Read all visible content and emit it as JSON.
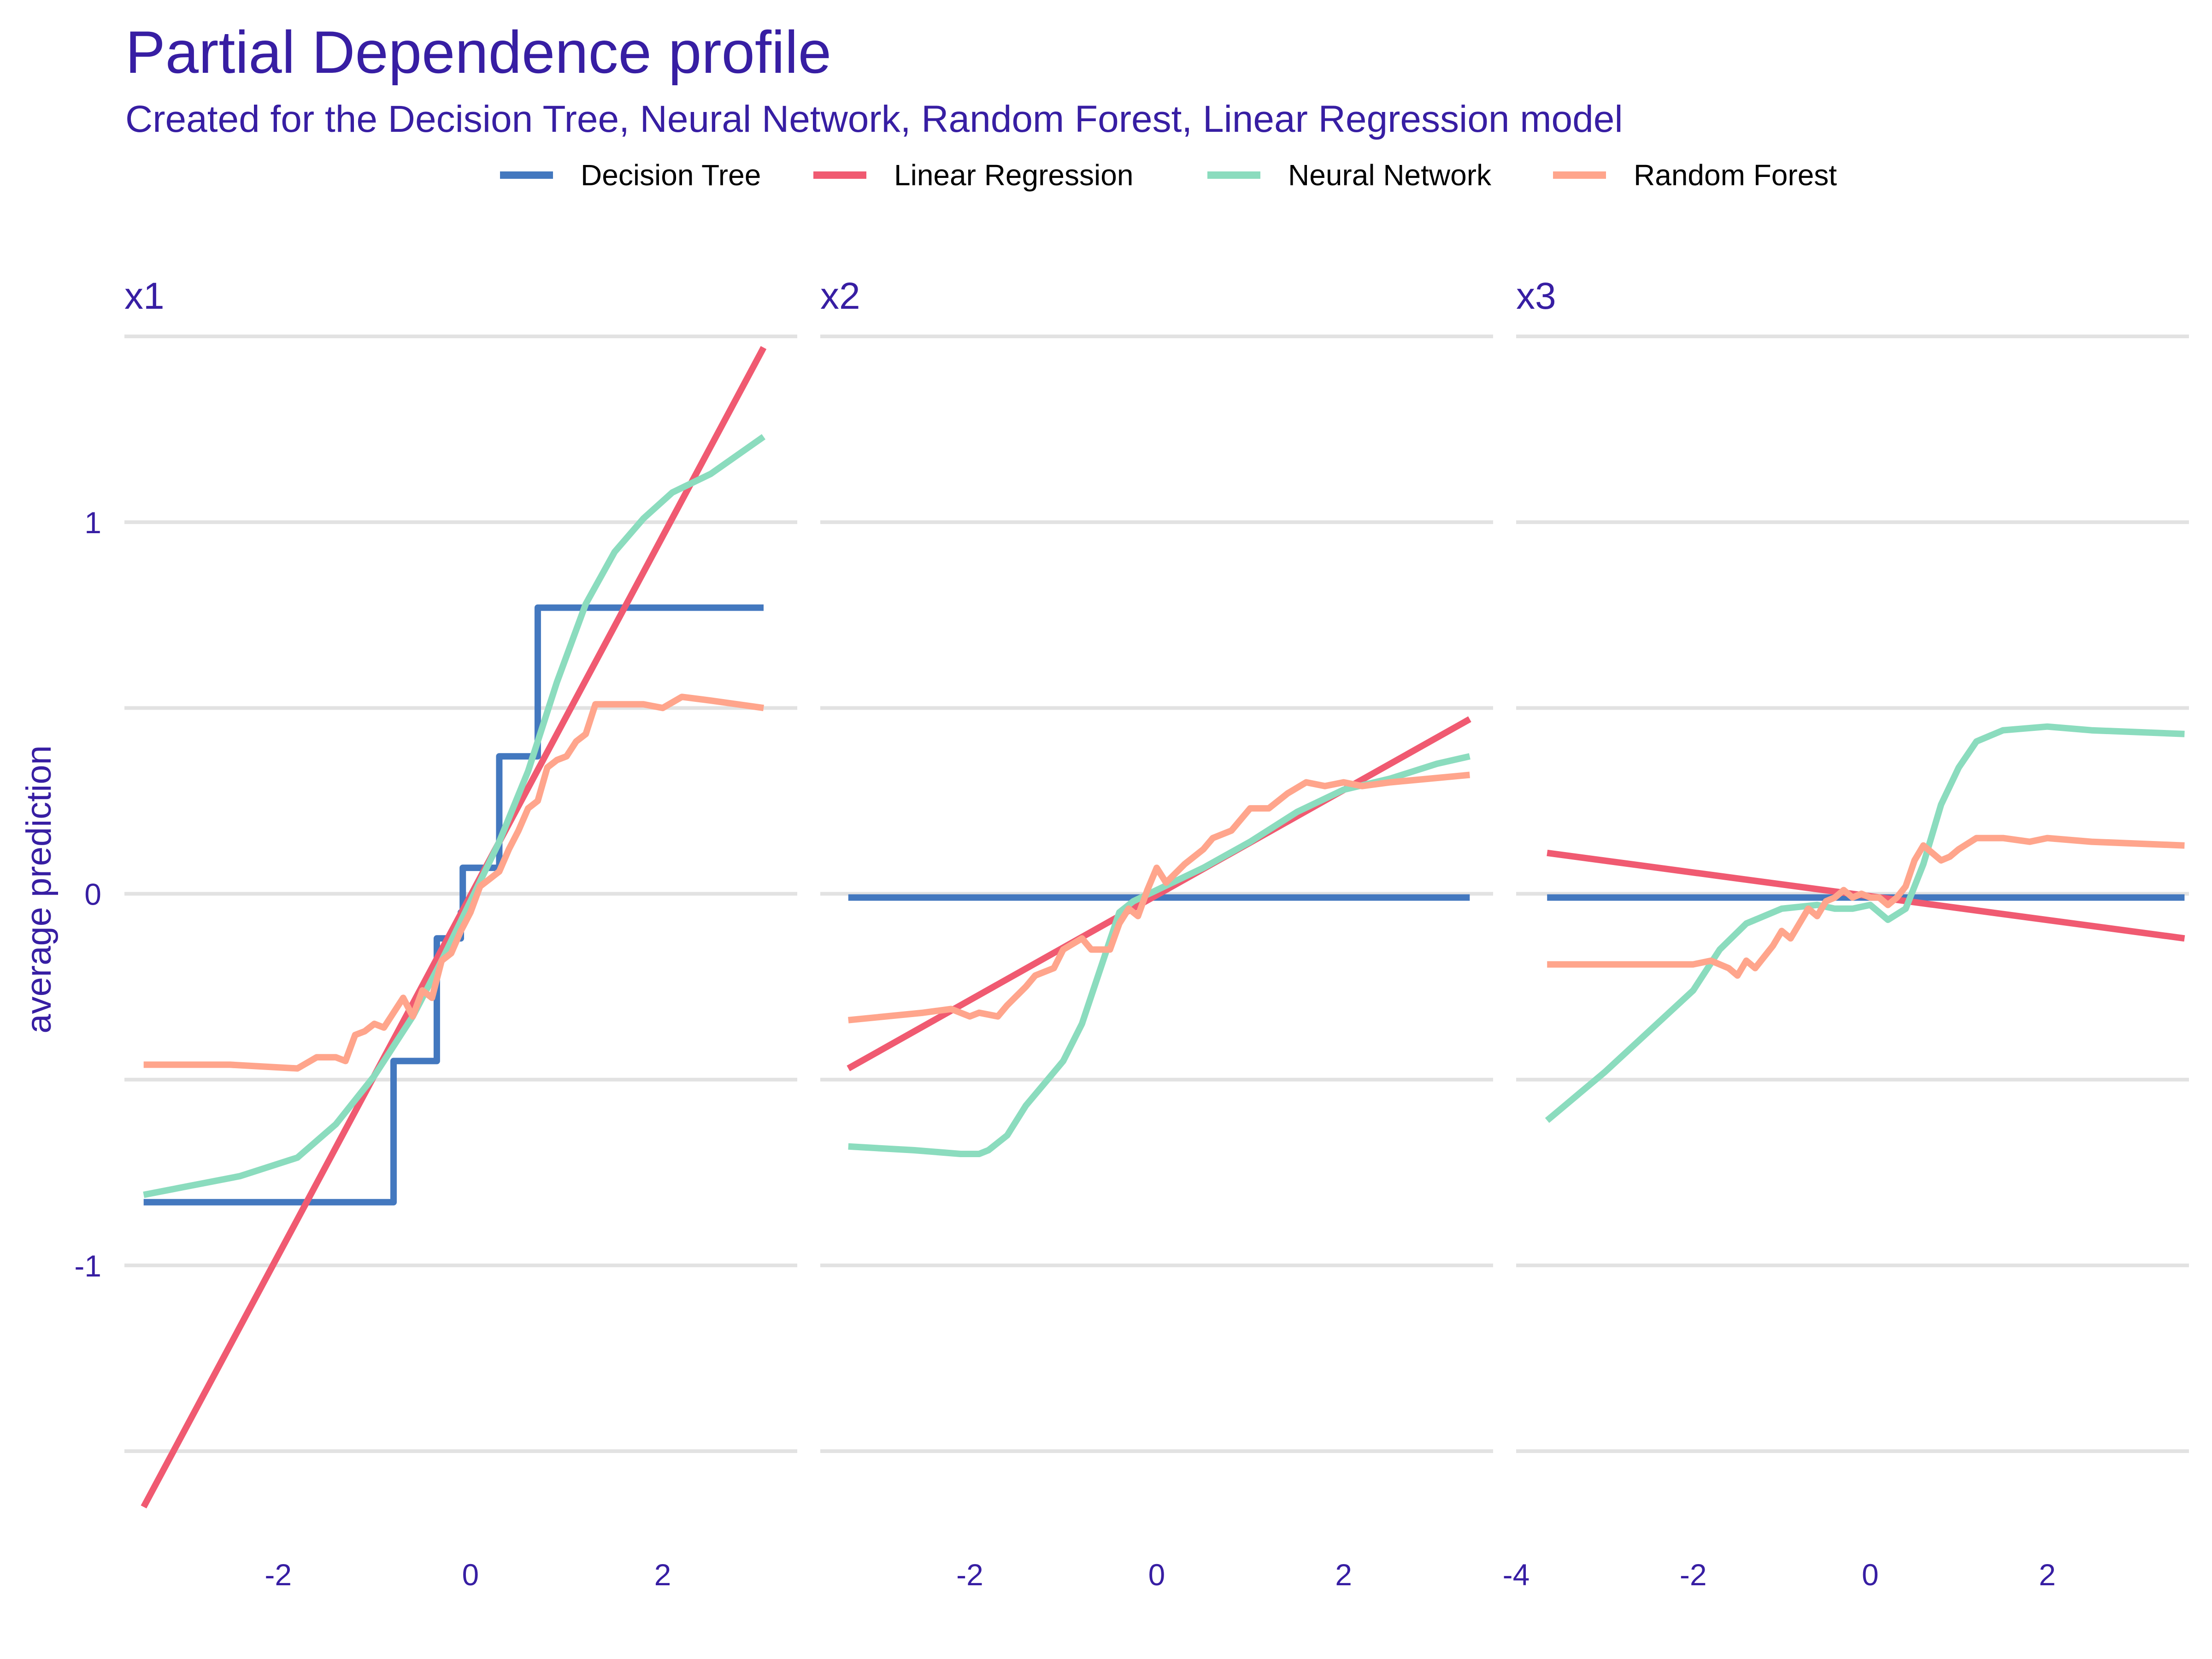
{
  "title": "Partial Dependence profile",
  "subtitle": "Created for the Decision Tree, Neural Network, Random Forest, Linear Regression model",
  "chart_data": {
    "type": "line",
    "ylabel": "average prediction",
    "xlabel": "",
    "ylim": [
      -1.65,
      1.5
    ],
    "y_ticks": [
      -1,
      0,
      1
    ],
    "legend_position": "top",
    "grid": true,
    "legend": [
      {
        "name": "Decision Tree",
        "color": "#4378bf"
      },
      {
        "name": "Linear Regression",
        "color": "#f05a71"
      },
      {
        "name": "Neural Network",
        "color": "#8bdcbe"
      },
      {
        "name": "Random Forest",
        "color": "#ffa58c"
      }
    ],
    "panels": [
      {
        "label": "x1",
        "xlim": [
          -3.6,
          3.4
        ],
        "x_ticks": [
          -2,
          0,
          2
        ],
        "x_tick_labels": [
          "-2",
          "0",
          "2"
        ],
        "series": [
          {
            "name": "Decision Tree",
            "color": "#4378bf",
            "step": true,
            "x": [
              -3.4,
              -0.8,
              -0.8,
              -0.35,
              -0.35,
              -0.1,
              -0.1,
              -0.08,
              -0.08,
              0.3,
              0.3,
              0.7,
              0.7,
              3.05
            ],
            "y": [
              -0.83,
              -0.83,
              -0.45,
              -0.45,
              -0.12,
              -0.12,
              -0.05,
              -0.05,
              0.07,
              0.07,
              0.37,
              0.37,
              0.77,
              0.77
            ]
          },
          {
            "name": "Linear Regression",
            "color": "#f05a71",
            "x": [
              -3.4,
              3.05
            ],
            "y": [
              -1.65,
              1.47
            ]
          },
          {
            "name": "Neural Network",
            "color": "#8bdcbe",
            "x": [
              -3.4,
              -2.4,
              -1.8,
              -1.4,
              -1.0,
              -0.6,
              -0.3,
              0,
              0.3,
              0.6,
              0.9,
              1.2,
              1.5,
              1.8,
              2.1,
              2.5,
              3.05
            ],
            "y": [
              -0.81,
              -0.76,
              -0.71,
              -0.62,
              -0.49,
              -0.33,
              -0.18,
              -0.02,
              0.14,
              0.33,
              0.57,
              0.78,
              0.92,
              1.01,
              1.08,
              1.13,
              1.23
            ]
          },
          {
            "name": "Random Forest",
            "color": "#ffa58c",
            "x": [
              -3.4,
              -2.5,
              -1.8,
              -1.6,
              -1.4,
              -1.3,
              -1.2,
              -1.1,
              -1.0,
              -0.9,
              -0.8,
              -0.7,
              -0.6,
              -0.5,
              -0.4,
              -0.3,
              -0.2,
              -0.1,
              0,
              0.1,
              0.2,
              0.3,
              0.4,
              0.5,
              0.6,
              0.7,
              0.8,
              0.9,
              1.0,
              1.1,
              1.2,
              1.3,
              1.5,
              1.8,
              2.0,
              2.2,
              2.5,
              3.05
            ],
            "y": [
              -0.46,
              -0.46,
              -0.47,
              -0.44,
              -0.44,
              -0.45,
              -0.38,
              -0.37,
              -0.35,
              -0.36,
              -0.32,
              -0.28,
              -0.33,
              -0.26,
              -0.28,
              -0.18,
              -0.16,
              -0.1,
              -0.05,
              0.02,
              0.04,
              0.06,
              0.12,
              0.17,
              0.23,
              0.25,
              0.34,
              0.36,
              0.37,
              0.41,
              0.43,
              0.51,
              0.51,
              0.51,
              0.5,
              0.53,
              0.52,
              0.5
            ]
          }
        ]
      },
      {
        "label": "x2",
        "xlim": [
          -3.6,
          3.6
        ],
        "x_ticks": [
          -2,
          0,
          2
        ],
        "x_tick_labels": [
          "-2",
          "0",
          "2"
        ],
        "series": [
          {
            "name": "Decision Tree",
            "color": "#4378bf",
            "x": [
              -3.3,
              3.35
            ],
            "y": [
              -0.01,
              -0.01
            ]
          },
          {
            "name": "Linear Regression",
            "color": "#f05a71",
            "x": [
              -3.3,
              3.35
            ],
            "y": [
              -0.47,
              0.47
            ]
          },
          {
            "name": "Neural Network",
            "color": "#8bdcbe",
            "x": [
              -3.3,
              -2.6,
              -2.1,
              -1.9,
              -1.8,
              -1.6,
              -1.4,
              -1.2,
              -1.0,
              -0.8,
              -0.6,
              -0.4,
              -0.25,
              0,
              0.5,
              1.0,
              1.5,
              2.0,
              2.5,
              3.0,
              3.35
            ],
            "y": [
              -0.68,
              -0.69,
              -0.7,
              -0.7,
              -0.69,
              -0.65,
              -0.57,
              -0.51,
              -0.45,
              -0.35,
              -0.2,
              -0.05,
              -0.02,
              0.01,
              0.07,
              0.14,
              0.22,
              0.28,
              0.31,
              0.35,
              0.37
            ]
          },
          {
            "name": "Random Forest",
            "color": "#ffa58c",
            "x": [
              -3.3,
              -2.5,
              -2.2,
              -2.0,
              -1.9,
              -1.7,
              -1.6,
              -1.4,
              -1.3,
              -1.1,
              -1.0,
              -0.8,
              -0.7,
              -0.5,
              -0.4,
              -0.3,
              -0.2,
              -0.1,
              0,
              0.1,
              0.3,
              0.5,
              0.6,
              0.8,
              1.0,
              1.2,
              1.4,
              1.6,
              1.8,
              2.0,
              2.2,
              2.5,
              3.35
            ],
            "y": [
              -0.34,
              -0.32,
              -0.31,
              -0.33,
              -0.32,
              -0.33,
              -0.3,
              -0.25,
              -0.22,
              -0.2,
              -0.15,
              -0.12,
              -0.15,
              -0.15,
              -0.08,
              -0.04,
              -0.06,
              0.01,
              0.07,
              0.03,
              0.08,
              0.12,
              0.15,
              0.17,
              0.23,
              0.23,
              0.27,
              0.3,
              0.29,
              0.3,
              0.29,
              0.3,
              0.32
            ]
          }
        ]
      },
      {
        "label": "x3",
        "xlim": [
          -4.0,
          3.6
        ],
        "x_ticks": [
          -4,
          -2,
          0,
          2
        ],
        "x_tick_labels": [
          "-4",
          "-2",
          "0",
          "2"
        ],
        "series": [
          {
            "name": "Decision Tree",
            "color": "#4378bf",
            "x": [
              -3.65,
              3.55
            ],
            "y": [
              -0.01,
              -0.01
            ]
          },
          {
            "name": "Linear Regression",
            "color": "#f05a71",
            "x": [
              -3.65,
              3.55
            ],
            "y": [
              0.11,
              -0.12
            ]
          },
          {
            "name": "Neural Network",
            "color": "#8bdcbe",
            "x": [
              -3.65,
              -3.0,
              -2.5,
              -2.0,
              -1.7,
              -1.4,
              -1.0,
              -0.6,
              -0.4,
              -0.2,
              0,
              0.2,
              0.4,
              0.6,
              0.8,
              1.0,
              1.2,
              1.5,
              2.0,
              2.5,
              3.55
            ],
            "y": [
              -0.61,
              -0.48,
              -0.37,
              -0.26,
              -0.15,
              -0.08,
              -0.04,
              -0.03,
              -0.04,
              -0.04,
              -0.03,
              -0.07,
              -0.04,
              0.08,
              0.24,
              0.34,
              0.41,
              0.44,
              0.45,
              0.44,
              0.43
            ]
          },
          {
            "name": "Random Forest",
            "color": "#ffa58c",
            "x": [
              -3.65,
              -3.0,
              -2.5,
              -2.0,
              -1.8,
              -1.6,
              -1.5,
              -1.4,
              -1.3,
              -1.1,
              -1.0,
              -0.9,
              -0.7,
              -0.6,
              -0.5,
              -0.4,
              -0.3,
              -0.2,
              -0.1,
              0,
              0.1,
              0.2,
              0.3,
              0.4,
              0.5,
              0.6,
              0.7,
              0.8,
              0.9,
              1.0,
              1.2,
              1.5,
              1.8,
              2.0,
              2.5,
              3.55
            ],
            "y": [
              -0.19,
              -0.19,
              -0.19,
              -0.19,
              -0.18,
              -0.2,
              -0.22,
              -0.18,
              -0.2,
              -0.14,
              -0.1,
              -0.12,
              -0.04,
              -0.06,
              -0.02,
              -0.01,
              0.01,
              -0.01,
              0.0,
              -0.01,
              -0.01,
              -0.03,
              -0.01,
              0.02,
              0.09,
              0.13,
              0.11,
              0.09,
              0.1,
              0.12,
              0.15,
              0.15,
              0.14,
              0.15,
              0.14,
              0.13
            ]
          }
        ]
      }
    ]
  }
}
